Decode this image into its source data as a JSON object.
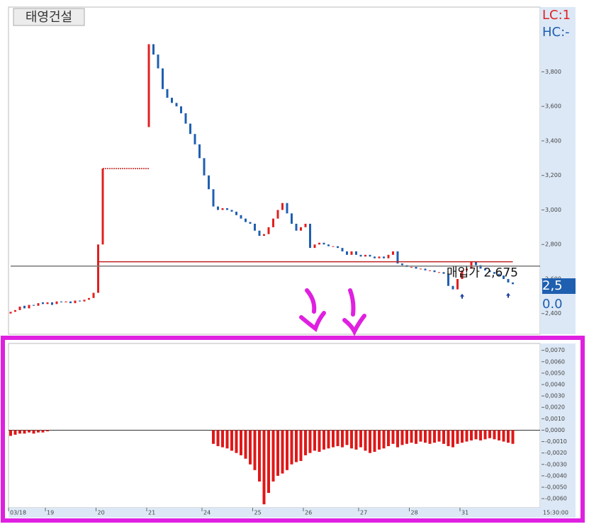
{
  "chart_data": [
    {
      "type": "candlestick",
      "title": "태영건설",
      "ylim": [
        2280,
        4175
      ],
      "yticks": [
        {
          "value": 2400,
          "label": "2,400"
        },
        {
          "value": 2600,
          "label": "2,600"
        },
        {
          "value": 2800,
          "label": "2,800"
        },
        {
          "value": 3000,
          "label": "3,000"
        },
        {
          "value": 3200,
          "label": "3,200"
        },
        {
          "value": 3400,
          "label": "3,400"
        },
        {
          "value": 3600,
          "label": "3,600"
        },
        {
          "value": 3800,
          "label": "3,800"
        }
      ],
      "up_color": "#e02020",
      "down_color": "#1f5fb0",
      "open": [
        2400,
        2410,
        2420,
        2445,
        2430,
        2450,
        2445,
        2465,
        2455,
        2465,
        2455,
        2470,
        2465,
        2470,
        2460,
        2475,
        2470,
        2480,
        2490,
        2520,
        2800,
        null,
        null,
        null,
        null,
        null,
        null,
        null,
        null,
        null,
        3480,
        3960,
        3900,
        3820,
        3700,
        3650,
        3620,
        3600,
        3560,
        3500,
        3440,
        3380,
        3300,
        3200,
        3120,
        3020,
        3000,
        3010,
        3000,
        2990,
        2970,
        2950,
        2930,
        2920,
        2880,
        2850,
        2860,
        2900,
        2950,
        3000,
        3040,
        2980,
        2920,
        2880,
        2900,
        2920,
        2780,
        2800,
        2810,
        2800,
        2790,
        2790,
        2780,
        2760,
        2740,
        2760,
        2740,
        2730,
        2740,
        2730,
        2720,
        2730,
        2720,
        2740,
        2760,
        2690,
        2680,
        2670,
        2670,
        2660,
        2660,
        2650,
        2650,
        2640,
        2640,
        2630,
        2560,
        2540,
        2600,
        2650,
        2660,
        2700,
        2680,
        2660,
        2650,
        2640,
        2630,
        2620,
        2600,
        2580
      ],
      "close": [
        2410,
        2420,
        2440,
        2430,
        2450,
        2445,
        2460,
        2455,
        2465,
        2450,
        2470,
        2465,
        2470,
        2460,
        2475,
        2470,
        2480,
        2490,
        2520,
        2800,
        3240,
        null,
        null,
        null,
        null,
        null,
        null,
        null,
        null,
        null,
        3960,
        3900,
        3820,
        3700,
        3650,
        3620,
        3600,
        3560,
        3500,
        3440,
        3380,
        3300,
        3200,
        3120,
        3020,
        3000,
        3010,
        3000,
        2990,
        2970,
        2950,
        2930,
        2920,
        2880,
        2850,
        2860,
        2900,
        2950,
        3000,
        3040,
        2980,
        2920,
        2880,
        2900,
        2920,
        2780,
        2800,
        2810,
        2800,
        2790,
        2790,
        2780,
        2760,
        2740,
        2760,
        2740,
        2730,
        2740,
        2730,
        2720,
        2730,
        2720,
        2740,
        2760,
        2690,
        2680,
        2670,
        2670,
        2660,
        2660,
        2650,
        2650,
        2640,
        2640,
        2630,
        2560,
        2540,
        2600,
        2650,
        2660,
        2700,
        2680,
        2660,
        2650,
        2640,
        2630,
        2620,
        2600,
        2580,
        2570
      ],
      "lines": [
        {
          "value": 3240,
          "from": 20,
          "to": 30,
          "color": "#c02020",
          "dash": true
        },
        {
          "value": 2700,
          "from": 19,
          "to": 109,
          "color": "#c02020",
          "dash": false
        },
        {
          "value": 2675,
          "from": 0,
          "to": 115,
          "color": "#777777",
          "dash": false
        }
      ],
      "annotation": "매입가 2,675",
      "annotation_at": 2675,
      "arrows": [
        {
          "x": 98,
          "y": 2515
        },
        {
          "x": 108,
          "y": 2520
        }
      ],
      "side_labels": [
        {
          "text": "LC:1",
          "color": "#e02020"
        },
        {
          "text": "HC:-",
          "color": "#1f5fb0"
        },
        {
          "text": "2,5",
          "color": "#ffffff"
        },
        {
          "text": "0.0",
          "color": "#1f5fb0"
        }
      ]
    },
    {
      "type": "bar",
      "color": "#e01818",
      "ylim": [
        -0.0068,
        0.0076
      ],
      "yticks": [
        {
          "value": -0.006,
          "label": "-0,0060"
        },
        {
          "value": -0.005,
          "label": "-0,0050"
        },
        {
          "value": -0.004,
          "label": "-0,0040"
        },
        {
          "value": -0.003,
          "label": "-0,0030"
        },
        {
          "value": -0.002,
          "label": "-0,0020"
        },
        {
          "value": -0.001,
          "label": "-0,0010"
        },
        {
          "value": 0,
          "label": "0,0000"
        },
        {
          "value": 0.001,
          "label": "0,0010"
        },
        {
          "value": 0.002,
          "label": "0,0020"
        },
        {
          "value": 0.003,
          "label": "0,0030"
        },
        {
          "value": 0.004,
          "label": "0,0040"
        },
        {
          "value": 0.005,
          "label": "0,0050"
        },
        {
          "value": 0.006,
          "label": "0,0060"
        },
        {
          "value": 0.007,
          "label": "0,0070"
        }
      ],
      "values": [
        -0.0005,
        -0.0004,
        -0.0003,
        -0.0003,
        -0.0002,
        -0.0003,
        -0.0002,
        -0.0002,
        -0.0001,
        null,
        null,
        null,
        null,
        null,
        null,
        null,
        null,
        null,
        null,
        null,
        null,
        null,
        null,
        null,
        null,
        null,
        null,
        null,
        null,
        null,
        null,
        null,
        null,
        null,
        null,
        null,
        null,
        null,
        null,
        null,
        null,
        null,
        null,
        null,
        -0.0012,
        -0.0014,
        -0.0015,
        -0.0016,
        -0.0018,
        -0.002,
        -0.0022,
        -0.0025,
        -0.003,
        -0.0035,
        -0.0045,
        -0.0065,
        -0.0055,
        -0.0045,
        -0.004,
        -0.0038,
        -0.0035,
        -0.003,
        -0.0028,
        -0.0027,
        -0.0022,
        -0.002,
        -0.0018,
        -0.0019,
        -0.0017,
        -0.0016,
        -0.0015,
        -0.0014,
        -0.0015,
        -0.0013,
        -0.0016,
        -0.0017,
        -0.0015,
        -0.0018,
        -0.002,
        -0.0019,
        -0.0017,
        -0.0016,
        -0.0014,
        -0.0012,
        -0.0015,
        -0.0013,
        -0.0012,
        -0.0011,
        -0.0012,
        -0.001,
        -0.0011,
        -0.0012,
        -0.0011,
        -0.001,
        -0.0012,
        -0.0014,
        -0.0015,
        -0.0012,
        -0.0011,
        -0.001,
        -0.0009,
        -0.0008,
        -0.0009,
        -0.0008,
        -0.0007,
        -0.0008,
        -0.0009,
        -0.001,
        -0.0011,
        -0.0012
      ],
      "xticks": [
        {
          "value": 0,
          "label": "03/18"
        },
        {
          "value": 8,
          "label": "19"
        },
        {
          "value": 19,
          "label": "20"
        },
        {
          "value": 30,
          "label": "21"
        },
        {
          "value": 42,
          "label": "24"
        },
        {
          "value": 53,
          "label": "25"
        },
        {
          "value": 64,
          "label": "26"
        },
        {
          "value": 76,
          "label": "27"
        },
        {
          "value": 87,
          "label": "28"
        },
        {
          "value": 98,
          "label": "31"
        }
      ],
      "time_label": "15:30:00"
    }
  ]
}
